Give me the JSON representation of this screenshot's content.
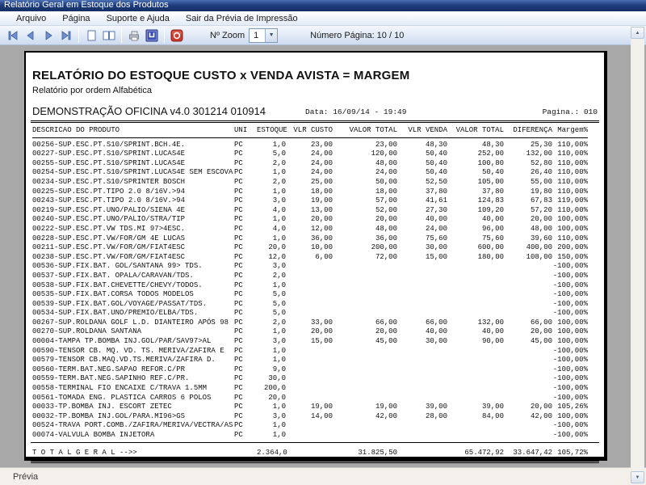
{
  "window": {
    "title": "Relatório Geral em Estoque dos Produtos"
  },
  "menu": {
    "items": [
      "Arquivo",
      "Página",
      "Suporte e Ajuda",
      "Sair da Prévia de Impressão"
    ]
  },
  "toolbar": {
    "icons": [
      "first-page",
      "previous-page",
      "next-page",
      "last-page",
      "single-page-view",
      "two-page-view",
      "print",
      "print-setup",
      "close-preview"
    ],
    "zoom_label": "Nº Zoom",
    "zoom_value": "1",
    "page_counter": "Número Página: 10 / 10"
  },
  "report": {
    "title": "RELATÓRIO DO ESTOQUE CUSTO x VENDA AVISTA = MARGEM",
    "subtitle": "Relatório por ordem Alfabética",
    "company": "DEMONSTRAÇÃO OFICINA v4.0 301214 010914",
    "date_label": "Data: 16/09/14 - 19:49",
    "page_label": "Pagina.: 010",
    "columns": [
      "DESCRICAO DO PRODUTO",
      "UNI",
      "ESTOQUE",
      "VLR CUSTO",
      "VALOR TOTAL",
      "VLR VENDA",
      "VALOR TOTAL",
      "DIFERENÇA",
      "Margem%"
    ],
    "rows": [
      [
        "00256-SUP.ESC.PT.S10/SPRINT.BCH.4E.",
        "PC",
        "1,0",
        "23,00",
        "23,00",
        "48,30",
        "48,30",
        "25,30",
        "110,00%"
      ],
      [
        "00227-SUP.ESC.PT.S10/SPRINT.LUCAS4E",
        "PC",
        "5,0",
        "24,00",
        "120,00",
        "50,40",
        "252,00",
        "132,00",
        "110,00%"
      ],
      [
        "00255-SUP.ESC.PT.S10/SPRINT.LUCAS4E",
        "PC",
        "2,0",
        "24,00",
        "48,00",
        "50,40",
        "100,80",
        "52,80",
        "110,00%"
      ],
      [
        "00254-SUP.ESC.PT.S10/SPRINT.LUCAS4E SEM ESCOVA",
        "PC",
        "1,0",
        "24,00",
        "24,00",
        "50,40",
        "50,40",
        "26,40",
        "110,00%"
      ],
      [
        "00234-SUP.ESC.PT.S10/SPRINTER BOSCH",
        "PC",
        "2,0",
        "25,00",
        "50,00",
        "52,50",
        "105,00",
        "55,00",
        "110,00%"
      ],
      [
        "00225-SUP.ESC.PT.TIPO 2.0 8/16V.>94",
        "PC",
        "1,0",
        "18,00",
        "18,00",
        "37,80",
        "37,80",
        "19,80",
        "110,00%"
      ],
      [
        "00243-SUP.ESC.PT.TIPO 2.0 8/16V.>94",
        "PC",
        "3,0",
        "19,00",
        "57,00",
        "41,61",
        "124,83",
        "67,83",
        "119,00%"
      ],
      [
        "00219-SUP.ESC.PT.UNO/PALIO/SIENA 4E",
        "PC",
        "4,0",
        "13,00",
        "52,00",
        "27,30",
        "109,20",
        "57,20",
        "110,00%"
      ],
      [
        "00240-SUP.ESC.PT.UNO/PALIO/STRA/TIP",
        "PC",
        "1,0",
        "20,00",
        "20,00",
        "40,00",
        "40,00",
        "20,00",
        "100,00%"
      ],
      [
        "00222-SUP.ESC.PT.VW TDS.MI 97>4ESC.",
        "PC",
        "4,0",
        "12,00",
        "48,00",
        "24,00",
        "96,00",
        "48,00",
        "100,00%"
      ],
      [
        "00228-SUP.ESC.PT.VW/FOR/GM 4E LUCAS",
        "PC",
        "1,0",
        "36,00",
        "36,00",
        "75,60",
        "75,60",
        "39,60",
        "110,00%"
      ],
      [
        "00211-SUP.ESC.PT.VW/FOR/GM/FIAT4ESC",
        "PC",
        "20,0",
        "10,00",
        "200,00",
        "30,00",
        "600,00",
        "400,00",
        "200,00%"
      ],
      [
        "00238-SUP.ESC.PT.VW/FOR/GM/FIAT4ESC",
        "PC",
        "12,0",
        "6,00",
        "72,00",
        "15,00",
        "180,00",
        "108,00",
        "150,00%"
      ],
      [
        "00536-SUP.FIX.BAT. GOL/SANTANA 99> TDS.",
        "PC",
        "3,0",
        "",
        "",
        "",
        "",
        "",
        "-100,00%"
      ],
      [
        "00537-SUP.FIX.BAT. OPALA/CARAVAN/TDS.",
        "PC",
        "2,0",
        "",
        "",
        "",
        "",
        "",
        "-100,00%"
      ],
      [
        "00538-SUP.FIX.BAT.CHEVETTE/CHEVY/TODOS.",
        "PC",
        "1,0",
        "",
        "",
        "",
        "",
        "",
        "-100,00%"
      ],
      [
        "00535-SUP.FIX.BAT.CORSA TODOS MODELOS",
        "PC",
        "5,0",
        "",
        "",
        "",
        "",
        "",
        "-100,00%"
      ],
      [
        "00539-SUP.FIX.BAT.GOL/VOYAGE/PASSAT/TDS.",
        "PC",
        "5,0",
        "",
        "",
        "",
        "",
        "",
        "-100,00%"
      ],
      [
        "00534-SUP.FIX.BAT.UNO/PREMIO/ELBA/TDS.",
        "PC",
        "5,0",
        "",
        "",
        "",
        "",
        "",
        "-100,00%"
      ],
      [
        "00267-SUP.ROLDANA GOLF L.D. DIANTEIRO APÓS 98",
        "PC",
        "2,0",
        "33,00",
        "66,00",
        "66,00",
        "132,00",
        "66,00",
        "100,00%"
      ],
      [
        "00270-SUP.ROLDANA SANTANA",
        "PC",
        "1,0",
        "20,00",
        "20,00",
        "40,00",
        "40,00",
        "20,00",
        "100,00%"
      ],
      [
        "00004-TAMPA TP.BOMBA INJ.GOL/PAR/SAV97>AL",
        "PC",
        "3,0",
        "15,00",
        "45,00",
        "30,00",
        "90,00",
        "45,00",
        "100,00%"
      ],
      [
        "00590-TENSOR CB. MQ. VD. TS. MERIVA/ZAFIRA E",
        "PC",
        "1,0",
        "",
        "",
        "",
        "",
        "",
        "-100,00%"
      ],
      [
        "00579-TENSOR CB.MAQ.VD.TS.MERIVA/ZAFIRA D.",
        "PC",
        "1,0",
        "",
        "",
        "",
        "",
        "",
        "-100,00%"
      ],
      [
        "00560-TERM.BAT.NEG.SAPAO REFOR.C/PR",
        "PC",
        "9,0",
        "",
        "",
        "",
        "",
        "",
        "-100,00%"
      ],
      [
        "00559-TERM.BAT.NEG.SAPINHO REF.C/PR.",
        "PC",
        "30,0",
        "",
        "",
        "",
        "",
        "",
        "-100,00%"
      ],
      [
        "00558-TERMINAL FIO ENCAIXE C/TRAVA 1.5MM",
        "PC",
        "200,0",
        "",
        "",
        "",
        "",
        "",
        "-100,00%"
      ],
      [
        "00561-TOMADA ENG. PLASTICA CARROS 6 POLOS",
        "PC",
        "20,0",
        "",
        "",
        "",
        "",
        "",
        "-100,00%"
      ],
      [
        "00033-TP.BOMBA INJ. ESCORT ZETEC",
        "PC",
        "1,0",
        "19,00",
        "19,00",
        "39,00",
        "39,00",
        "20,00",
        "105,26%"
      ],
      [
        "00032-TP.BOMBA INJ.GOL/PARA.MI96>GS",
        "PC",
        "3,0",
        "14,00",
        "42,00",
        "28,00",
        "84,00",
        "42,00",
        "100,00%"
      ],
      [
        "00524-TRAVA PORT.COMB./ZAFIRA/MERIVA/VECTRA/AS",
        "PC",
        "1,0",
        "",
        "",
        "",
        "",
        "",
        "-100,00%"
      ],
      [
        "00074-VALVULA BOMBA INJETORA",
        "PC",
        "1,0",
        "",
        "",
        "",
        "",
        "",
        "-100,00%"
      ]
    ],
    "total_row": [
      "T O T A L   G E R A L   -->>",
      "",
      "2.364,0",
      "",
      "31.825,50",
      "",
      "65.472,92",
      "33.647,42",
      "105,72%"
    ]
  },
  "statusbar": {
    "text": "Prévia"
  },
  "colors": {
    "titlebar": "#1e3d7c",
    "toolbar": "#cfdcf0",
    "preview_bg": "#a8a8a8",
    "close_icon": "#c0392b",
    "setup_icon": "#3a4db0"
  }
}
